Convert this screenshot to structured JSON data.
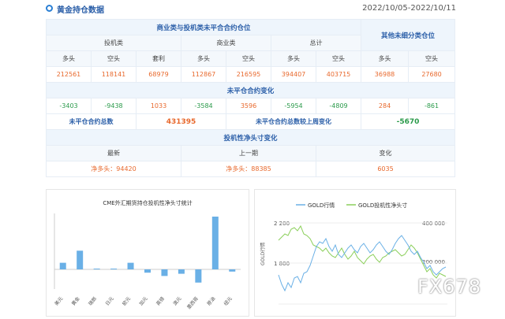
{
  "header": {
    "title": "黄金持仓数据",
    "date_range": "2022/10/05-2022/10/11"
  },
  "table": {
    "top_header": "商业类与投机类未平合合约仓位",
    "other_header": "其他未细分类仓位",
    "groups": [
      "投机类",
      "商业类",
      "总计"
    ],
    "cols": [
      "多头",
      "空头",
      "套利",
      "多头",
      "空头",
      "多头",
      "空头",
      "多头",
      "空头"
    ],
    "values": [
      "212561",
      "118141",
      "68979",
      "112867",
      "216595",
      "394407",
      "403715",
      "36988",
      "27680"
    ],
    "change_header": "未平仓合约变化",
    "changes": [
      "-3403",
      "-9438",
      "1033",
      "-3584",
      "3596",
      "-5954",
      "-4809",
      "284",
      "-861"
    ],
    "total_label": "未平仓合约总数",
    "total_value": "431395",
    "week_label": "未平仓合约总数较上周变化",
    "week_value": "-5670",
    "net_header": "投机性净头寸变化",
    "net_cols": [
      "最新",
      "上一期",
      "变化"
    ],
    "net_latest": "净多头：94420",
    "net_prev": "净多头：88385",
    "net_change": "6035"
  },
  "chart_left": {
    "title": "CME外汇期货持仓投机性净头寸统计",
    "type": "bar",
    "categories": [
      "美元",
      "黄金",
      "瑞郎",
      "日元",
      "欧元",
      "加元",
      "英镑",
      "澳元",
      "墨西哥",
      "原油",
      "纽元"
    ],
    "values": [
      6,
      17,
      0,
      0,
      6,
      -3,
      -6,
      -4,
      -12,
      48,
      -2
    ]
  },
  "chart_right": {
    "legend": [
      "GOLD行情",
      "GOLD投机性净头寸"
    ],
    "y_left_label": "GOLD行情",
    "y_left_ticks": [
      "2 200",
      "1 800"
    ],
    "y_right_ticks": [
      "400 000",
      "200 000"
    ],
    "colors": {
      "price": "#6ab0e6",
      "net": "#8bcf5a"
    }
  },
  "watermark": "FX678"
}
